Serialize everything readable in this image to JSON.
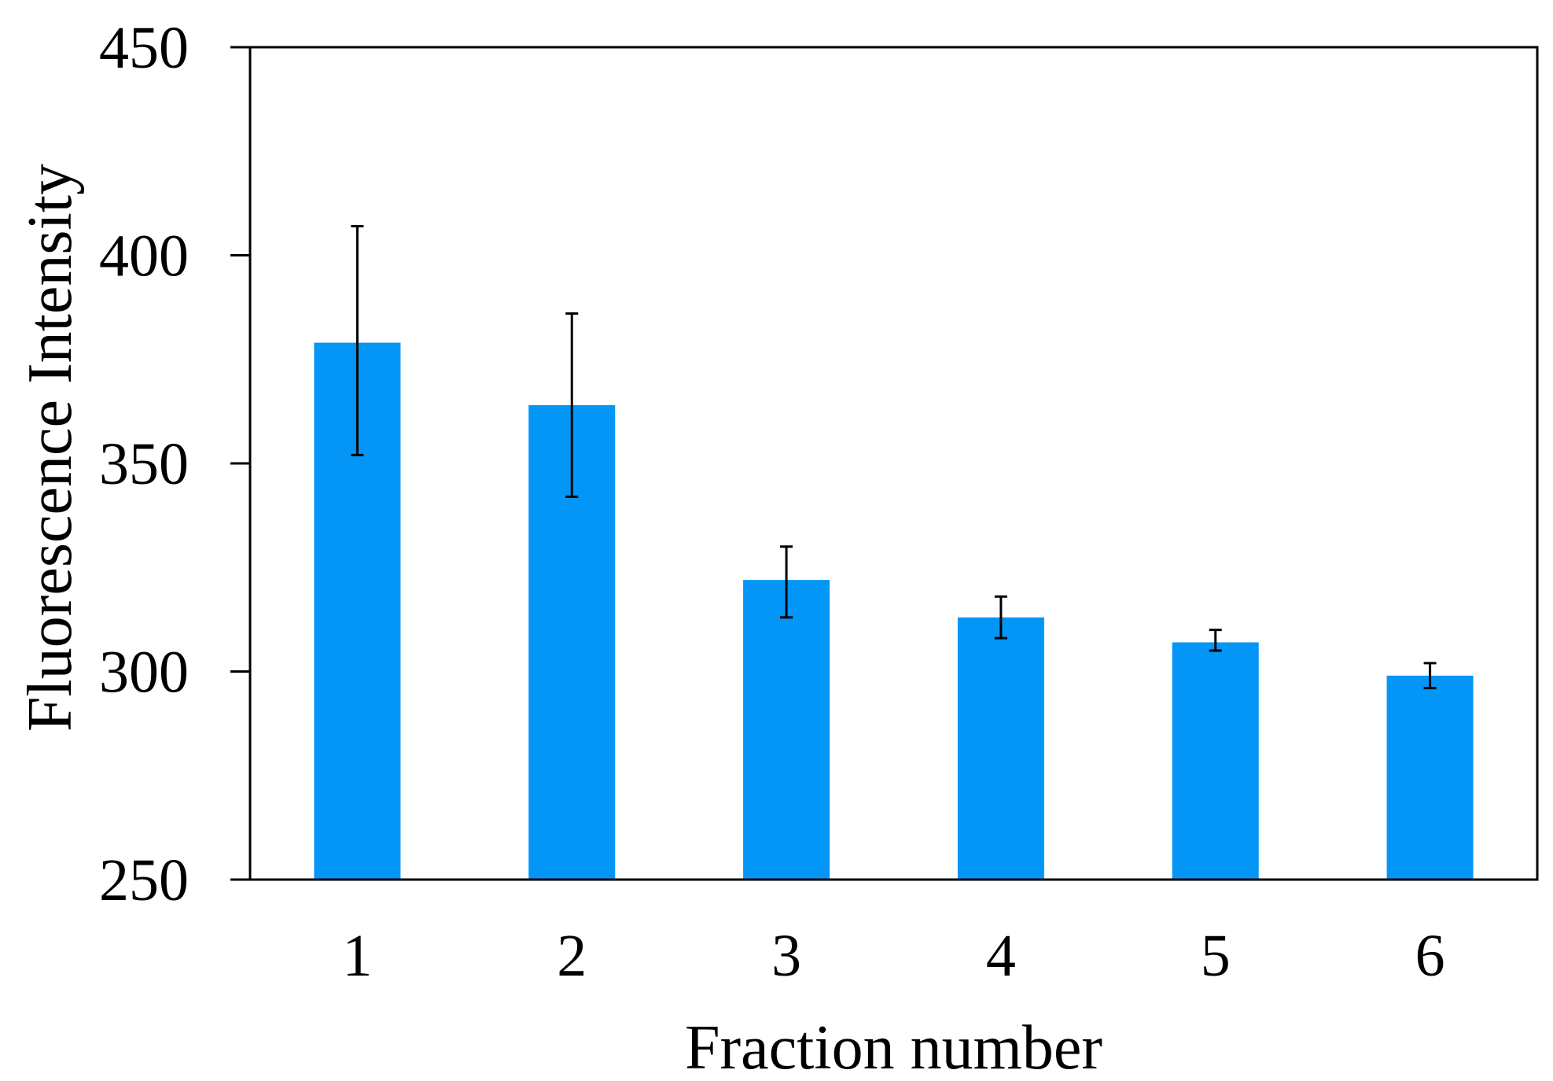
{
  "chart_data": {
    "type": "bar",
    "title": "",
    "xlabel": "Fraction number",
    "ylabel": "Fluorescence Intensity",
    "categories": [
      "1",
      "2",
      "3",
      "4",
      "5",
      "6"
    ],
    "values": [
      379,
      364,
      322,
      313,
      307,
      299
    ],
    "error_low": [
      352,
      342,
      313,
      308,
      305,
      296
    ],
    "error_high": [
      407,
      386,
      330,
      318,
      310,
      302
    ],
    "ylim": [
      250,
      450
    ],
    "yticks": [
      "250",
      "300",
      "350",
      "400",
      "450"
    ],
    "grid": false,
    "legend": "none",
    "bar_color": "#0396F7",
    "error_bar_color": "#000000"
  }
}
